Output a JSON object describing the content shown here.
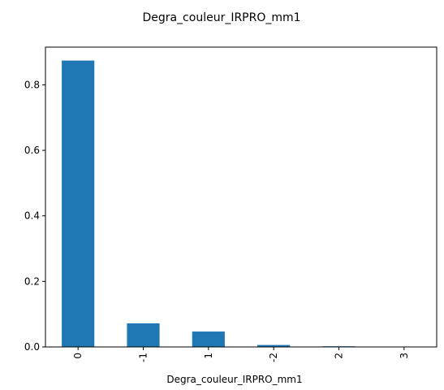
{
  "chart_data": {
    "type": "bar",
    "title": "Degra_couleur_IRPRO_mm1",
    "xlabel": "Degra_couleur_IRPRO_mm1",
    "ylabel": "",
    "categories": [
      "0",
      "-1",
      "1",
      "-2",
      "2",
      "3"
    ],
    "values": [
      0.874,
      0.072,
      0.047,
      0.006,
      0.002,
      0.0005
    ],
    "ylim": [
      0,
      0.915
    ],
    "yticks": [
      0.0,
      0.2,
      0.4,
      0.6,
      0.8
    ],
    "ytick_labels": [
      "0.0",
      "0.2",
      "0.4",
      "0.6",
      "0.8"
    ],
    "bar_color": "#1f77b4",
    "grid": false,
    "legend": "none",
    "xtick_rotation": "vertical"
  }
}
